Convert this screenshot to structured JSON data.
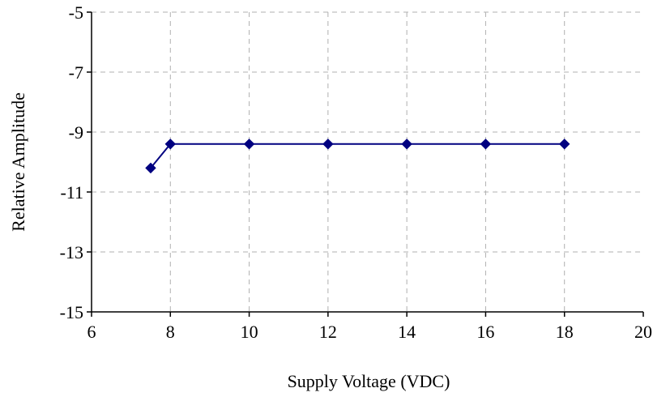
{
  "chart_data": {
    "type": "line",
    "title": "",
    "xlabel": "Supply Voltage (VDC)",
    "ylabel": "Relative Amplitude",
    "xlim": [
      6,
      20
    ],
    "ylim": [
      -15,
      -5
    ],
    "xticks": [
      6,
      8,
      10,
      12,
      14,
      16,
      18,
      20
    ],
    "yticks": [
      -5,
      -7,
      -9,
      -11,
      -13,
      -15
    ],
    "xtick_labels": [
      "6",
      "8",
      "10",
      "12",
      "14",
      "16",
      "18",
      "20"
    ],
    "ytick_labels": [
      "-5",
      "-7",
      "-9",
      "-11",
      "-13",
      "-15"
    ],
    "grid": true,
    "legend": "none",
    "series": [
      {
        "color": "#000080",
        "marker": "diamond",
        "x": [
          7.5,
          8,
          10,
          12,
          14,
          16,
          18
        ],
        "y": [
          -10.2,
          -9.4,
          -9.4,
          -9.4,
          -9.4,
          -9.4,
          -9.4
        ]
      }
    ]
  }
}
